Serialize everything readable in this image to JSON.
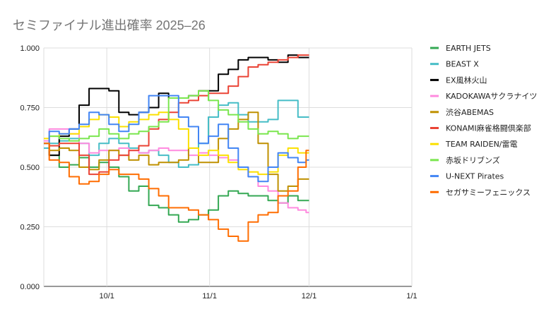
{
  "chart_data": {
    "type": "line",
    "title": "セミファイナル進出確率 2025–26",
    "xlabel": "",
    "ylabel": "",
    "ylim": [
      0,
      1
    ],
    "y_ticks": [
      "0.000",
      "0.250",
      "0.500",
      "0.750",
      "1.000"
    ],
    "x_range": [
      "2025-09-12",
      "2026-01-01"
    ],
    "x_ticks": [
      {
        "label": "10/1",
        "date": "2025-10-01"
      },
      {
        "label": "11/1",
        "date": "2025-11-01"
      },
      {
        "label": "12/1",
        "date": "2025-12-01"
      },
      {
        "label": "1/1",
        "date": "2026-01-01"
      }
    ],
    "grid": true,
    "legend_position": "right",
    "x": [
      "2025-09-12",
      "2025-09-15",
      "2025-09-18",
      "2025-09-21",
      "2025-09-24",
      "2025-09-27",
      "2025-09-30",
      "2025-10-03",
      "2025-10-06",
      "2025-10-09",
      "2025-10-12",
      "2025-10-15",
      "2025-10-18",
      "2025-10-21",
      "2025-10-24",
      "2025-10-27",
      "2025-10-30",
      "2025-11-02",
      "2025-11-05",
      "2025-11-08",
      "2025-11-11",
      "2025-11-14",
      "2025-11-17",
      "2025-11-20",
      "2025-11-23",
      "2025-11-26",
      "2025-11-29",
      "2025-12-01"
    ],
    "series": [
      {
        "name": "EARTH JETS",
        "color": "#34a853",
        "values": [
          0.6,
          0.55,
          0.5,
          0.51,
          0.54,
          0.5,
          0.52,
          0.5,
          0.46,
          0.4,
          0.42,
          0.34,
          0.33,
          0.3,
          0.27,
          0.28,
          0.3,
          0.32,
          0.38,
          0.4,
          0.39,
          0.38,
          0.38,
          0.36,
          0.35,
          0.38,
          0.36,
          0.36
        ]
      },
      {
        "name": "BEAST X",
        "color": "#46bdc6",
        "values": [
          0.58,
          0.6,
          0.61,
          0.62,
          0.6,
          0.55,
          0.6,
          0.62,
          0.6,
          0.58,
          0.56,
          0.57,
          0.55,
          0.52,
          0.5,
          0.51,
          0.6,
          0.71,
          0.76,
          0.77,
          0.72,
          0.69,
          0.69,
          0.7,
          0.78,
          0.78,
          0.71,
          0.71
        ]
      },
      {
        "name": "EX風林火山",
        "color": "#000000",
        "values": [
          0.6,
          0.55,
          0.63,
          0.66,
          0.76,
          0.83,
          0.83,
          0.82,
          0.73,
          0.72,
          0.73,
          0.75,
          0.81,
          0.79,
          0.79,
          0.8,
          0.82,
          0.82,
          0.89,
          0.91,
          0.95,
          0.96,
          0.96,
          0.95,
          0.94,
          0.97,
          0.96,
          0.96
        ]
      },
      {
        "name": "KADOKAWAサクラナイツ",
        "color": "#ff8adf",
        "values": [
          0.61,
          0.66,
          0.66,
          0.64,
          0.6,
          0.56,
          0.57,
          0.57,
          0.58,
          0.57,
          0.56,
          0.57,
          0.58,
          0.57,
          0.57,
          0.55,
          0.56,
          0.55,
          0.54,
          0.53,
          0.5,
          0.46,
          0.42,
          0.4,
          0.35,
          0.33,
          0.32,
          0.31
        ]
      },
      {
        "name": "渋谷ABEMAS",
        "color": "#bf9000",
        "values": [
          0.6,
          0.57,
          0.58,
          0.57,
          0.5,
          0.49,
          0.53,
          0.57,
          0.55,
          0.53,
          0.55,
          0.51,
          0.52,
          0.52,
          0.53,
          0.58,
          0.52,
          0.52,
          0.62,
          0.66,
          0.7,
          0.73,
          0.6,
          0.47,
          0.4,
          0.42,
          0.45,
          0.45
        ]
      },
      {
        "name": "KONAMI麻雀格闘倶楽部",
        "color": "#ea4335",
        "values": [
          0.6,
          0.59,
          0.6,
          0.6,
          0.55,
          0.47,
          0.48,
          0.53,
          0.55,
          0.57,
          0.59,
          0.66,
          0.7,
          0.73,
          0.77,
          0.78,
          0.8,
          0.81,
          0.81,
          0.84,
          0.88,
          0.92,
          0.93,
          0.94,
          0.95,
          0.96,
          0.97,
          0.97
        ]
      },
      {
        "name": "TEAM RAIDEN/雷電",
        "color": "#fbe000",
        "values": [
          0.62,
          0.63,
          0.64,
          0.64,
          0.67,
          0.7,
          0.72,
          0.71,
          0.67,
          0.69,
          0.7,
          0.72,
          0.73,
          0.7,
          0.66,
          0.58,
          0.55,
          0.57,
          0.55,
          0.52,
          0.49,
          0.48,
          0.47,
          0.48,
          0.55,
          0.58,
          0.56,
          0.56
        ]
      },
      {
        "name": "赤坂ドリブンズ",
        "color": "#7ae64e",
        "values": [
          0.6,
          0.63,
          0.62,
          0.61,
          0.62,
          0.63,
          0.66,
          0.64,
          0.62,
          0.64,
          0.65,
          0.67,
          0.69,
          0.79,
          0.79,
          0.8,
          0.82,
          0.78,
          0.74,
          0.72,
          0.69,
          0.66,
          0.64,
          0.65,
          0.64,
          0.62,
          0.63,
          0.63
        ]
      },
      {
        "name": "U-NEXT Pirates",
        "color": "#4285f4",
        "values": [
          0.6,
          0.65,
          0.64,
          0.66,
          0.68,
          0.73,
          0.72,
          0.68,
          0.65,
          0.68,
          0.73,
          0.8,
          0.8,
          0.8,
          0.71,
          0.67,
          0.6,
          0.63,
          0.68,
          0.58,
          0.5,
          0.46,
          0.44,
          0.5,
          0.56,
          0.54,
          0.52,
          0.53
        ]
      },
      {
        "name": "セガサミーフェニックス",
        "color": "#ff6d01",
        "values": [
          0.6,
          0.53,
          0.52,
          0.46,
          0.43,
          0.44,
          0.47,
          0.49,
          0.47,
          0.47,
          0.45,
          0.41,
          0.38,
          0.33,
          0.33,
          0.32,
          0.3,
          0.28,
          0.24,
          0.21,
          0.19,
          0.27,
          0.3,
          0.31,
          0.38,
          0.4,
          0.5,
          0.57
        ]
      }
    ]
  }
}
